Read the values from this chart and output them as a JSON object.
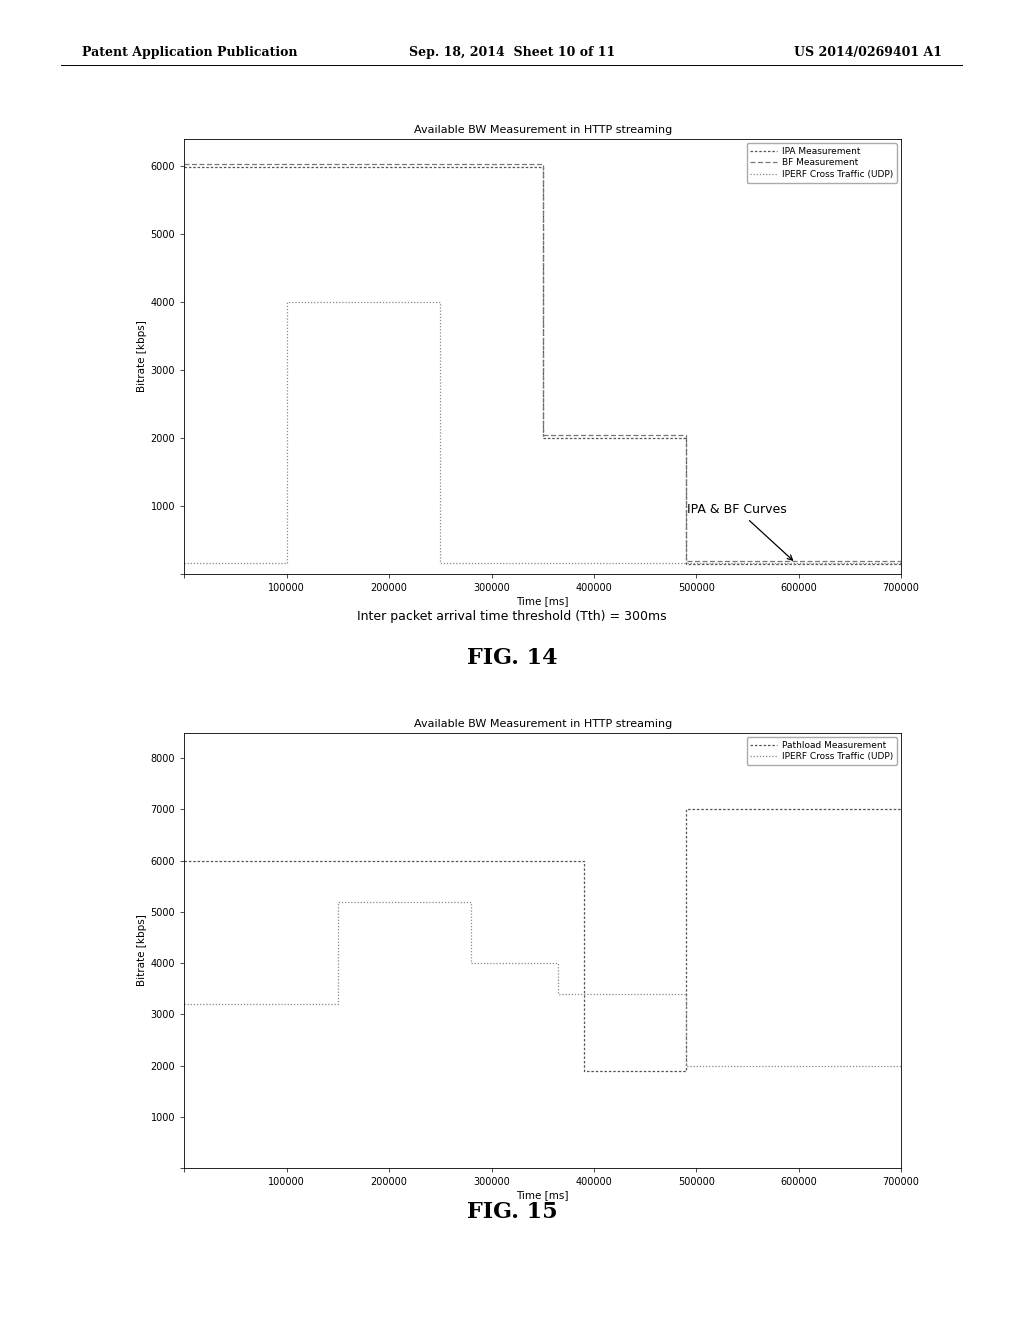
{
  "header_left": "Patent Application Publication",
  "header_center": "Sep. 18, 2014  Sheet 10 of 11",
  "header_right": "US 2014/0269401 A1",
  "fig14_title": "Available BW Measurement in HTTP streaming",
  "fig14_xlabel": "Time [ms]",
  "fig14_ylabel": "Bitrate [kbps]",
  "fig14_xlim": [
    0,
    700000
  ],
  "fig14_ylim": [
    0,
    6400
  ],
  "fig14_yticks": [
    0,
    1000,
    2000,
    3000,
    4000,
    5000,
    6000
  ],
  "fig14_xticks": [
    0,
    100000,
    200000,
    300000,
    400000,
    500000,
    600000,
    700000
  ],
  "fig14_caption1": "Inter packet arrival time threshold (Tth) = 300ms",
  "fig14_caption2": "FIG. 14",
  "ipa_x": [
    0,
    350000,
    350000,
    490000,
    490000,
    700000
  ],
  "ipa_y": [
    5980,
    5980,
    2000,
    2000,
    150,
    150
  ],
  "bf_x": [
    0,
    350000,
    350000,
    490000,
    490000,
    700000
  ],
  "bf_y": [
    6020,
    6020,
    2050,
    2050,
    200,
    200
  ],
  "iperf14_x": [
    0,
    100000,
    100000,
    250000,
    250000,
    700000
  ],
  "iperf14_y": [
    170,
    170,
    4000,
    4000,
    170,
    170
  ],
  "fig15_title": "Available BW Measurement in HTTP streaming",
  "fig15_xlabel": "Time [ms]",
  "fig15_ylabel": "Bitrate [kbps]",
  "fig15_xlim": [
    0,
    700000
  ],
  "fig15_ylim": [
    0,
    8500
  ],
  "fig15_yticks": [
    0,
    1000,
    2000,
    3000,
    4000,
    5000,
    6000,
    7000,
    8000
  ],
  "fig15_xticks": [
    0,
    100000,
    200000,
    300000,
    400000,
    500000,
    600000,
    700000
  ],
  "fig15_caption": "FIG. 15",
  "pathload_x": [
    0,
    150000,
    150000,
    280000,
    280000,
    390000,
    390000,
    490000,
    490000,
    700000
  ],
  "pathload_y": [
    6000,
    6000,
    6000,
    6000,
    6000,
    6000,
    1900,
    1900,
    7000,
    7000
  ],
  "iperf15_x": [
    0,
    150000,
    150000,
    280000,
    280000,
    365000,
    365000,
    490000,
    490000,
    700000
  ],
  "iperf15_y": [
    3200,
    3200,
    5200,
    5200,
    4000,
    4000,
    3400,
    3400,
    2000,
    2000
  ],
  "bg_color": "#ffffff"
}
